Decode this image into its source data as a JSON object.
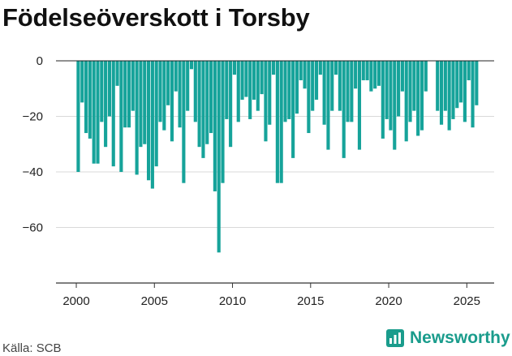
{
  "title": "Födelseöverskott i Torsby",
  "source": "Källa: SCB",
  "brand": {
    "name": "Newsworthy",
    "color": "#1a9c8c",
    "icon": "bar-chart-icon"
  },
  "colors": {
    "bar": "#16a39a",
    "grid": "#d9d9d9",
    "zero_line": "#222222",
    "axis": "#333333"
  },
  "chart_data": {
    "type": "bar",
    "title": "Födelseöverskott i Torsby",
    "xlabel": "",
    "ylabel": "",
    "grid": true,
    "xlim": [
      1998.7,
      2026.75
    ],
    "ylim": [
      -80,
      0
    ],
    "y_ticks": [
      0,
      -20,
      -40,
      -60
    ],
    "y_tick_labels": [
      "0",
      "−20",
      "−40",
      "−60"
    ],
    "x_ticks": [
      2000,
      2005,
      2010,
      2015,
      2020,
      2025
    ],
    "x_tick_labels": [
      "2000",
      "2005",
      "2010",
      "2015",
      "2020",
      "2025"
    ],
    "bar_period": "quarter",
    "x": [
      "2000Q1",
      "2000Q2",
      "2000Q3",
      "2000Q4",
      "2001Q1",
      "2001Q2",
      "2001Q3",
      "2001Q4",
      "2002Q1",
      "2002Q2",
      "2002Q3",
      "2002Q4",
      "2003Q1",
      "2003Q2",
      "2003Q3",
      "2003Q4",
      "2004Q1",
      "2004Q2",
      "2004Q3",
      "2004Q4",
      "2005Q1",
      "2005Q2",
      "2005Q3",
      "2005Q4",
      "2006Q1",
      "2006Q2",
      "2006Q3",
      "2006Q4",
      "2007Q1",
      "2007Q2",
      "2007Q3",
      "2007Q4",
      "2008Q1",
      "2008Q2",
      "2008Q3",
      "2008Q4",
      "2009Q1",
      "2009Q2",
      "2009Q3",
      "2009Q4",
      "2010Q1",
      "2010Q2",
      "2010Q3",
      "2010Q4",
      "2011Q1",
      "2011Q2",
      "2011Q3",
      "2011Q4",
      "2012Q1",
      "2012Q2",
      "2012Q3",
      "2012Q4",
      "2013Q1",
      "2013Q2",
      "2013Q3",
      "2013Q4",
      "2014Q1",
      "2014Q2",
      "2014Q3",
      "2014Q4",
      "2015Q1",
      "2015Q2",
      "2015Q3",
      "2015Q4",
      "2016Q1",
      "2016Q2",
      "2016Q3",
      "2016Q4",
      "2017Q1",
      "2017Q2",
      "2017Q3",
      "2017Q4",
      "2018Q1",
      "2018Q2",
      "2018Q3",
      "2018Q4",
      "2019Q1",
      "2019Q2",
      "2019Q3",
      "2019Q4",
      "2020Q1",
      "2020Q2",
      "2020Q3",
      "2020Q4",
      "2021Q1",
      "2021Q2",
      "2021Q3",
      "2021Q4",
      "2022Q1",
      "2022Q2",
      "2022Q3",
      "2022Q4",
      "2023Q1",
      "2023Q2",
      "2023Q3",
      "2023Q4",
      "2024Q1",
      "2024Q2",
      "2024Q3",
      "2024Q4",
      "2025Q1",
      "2025Q2",
      "2025Q3",
      "2025Q4"
    ],
    "values": [
      -40,
      -15,
      -26,
      -28,
      -37,
      -37,
      -22,
      -31,
      -20,
      -38,
      -9,
      -40,
      -24,
      -24,
      -18,
      -41,
      -31,
      -30,
      -43,
      -46,
      -38,
      -22,
      -25,
      -16,
      -29,
      -11,
      -24,
      -44,
      -18,
      -3,
      -22,
      -31,
      -35,
      -30,
      -26,
      -47,
      -69,
      -44,
      -21,
      -31,
      -5,
      -22,
      -14,
      -13,
      -21,
      -14,
      -18,
      -12,
      -29,
      -23,
      -5,
      -44,
      -44,
      -22,
      -21,
      -35,
      -19,
      -7,
      -10,
      -26,
      -18,
      -14,
      -5,
      -23,
      -32,
      -18,
      -5,
      -18,
      -35,
      -22,
      -22,
      -10,
      -32,
      -7,
      -7,
      -11,
      -10,
      -9,
      -28,
      -21,
      -25,
      -32,
      -20,
      -11,
      -29,
      -22,
      -18,
      -27,
      -25,
      -11,
      0,
      0,
      -18,
      -23,
      -18,
      -25,
      -21,
      -17,
      -15,
      -22,
      -7,
      -24,
      -16,
      0
    ]
  }
}
